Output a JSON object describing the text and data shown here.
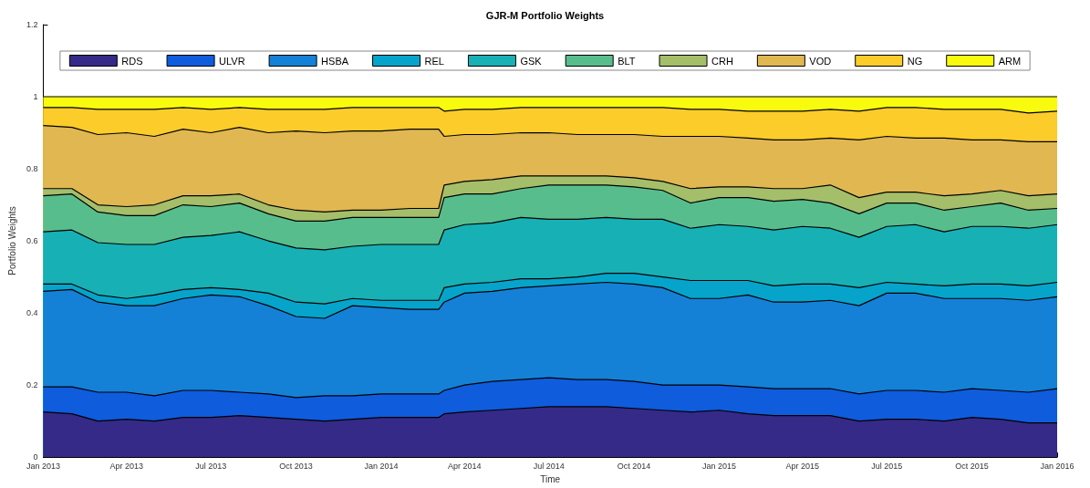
{
  "chart_data": {
    "type": "area",
    "stacked": true,
    "title": "GJR-M Portfolio Weights",
    "xlabel": "Time",
    "ylabel": "Portfolio Weights",
    "legend": "top",
    "grid": false,
    "marker": "none",
    "x": [
      "2013-01-01",
      "2013-02-01",
      "2013-03-01",
      "2013-04-01",
      "2013-05-01",
      "2013-06-01",
      "2013-07-01",
      "2013-08-01",
      "2013-09-01",
      "2013-10-01",
      "2013-11-01",
      "2013-12-01",
      "2014-01-01",
      "2014-02-01",
      "2014-03-04",
      "2014-03-10",
      "2014-04-01",
      "2014-05-01",
      "2014-06-01",
      "2014-07-01",
      "2014-08-01",
      "2014-09-01",
      "2014-10-01",
      "2014-11-01",
      "2014-12-01",
      "2015-01-01",
      "2015-02-01",
      "2015-03-01",
      "2015-04-01",
      "2015-05-01",
      "2015-06-01",
      "2015-07-01",
      "2015-08-01",
      "2015-09-01",
      "2015-10-01",
      "2015-11-01",
      "2015-12-01",
      "2016-01-01"
    ],
    "xlim": [
      "2013-01-01",
      "2016-01-01"
    ],
    "xticks": [
      {
        "value": "2013-01-01",
        "label": "Jan 2013"
      },
      {
        "value": "2013-04-01",
        "label": "Apr 2013"
      },
      {
        "value": "2013-07-01",
        "label": "Jul 2013"
      },
      {
        "value": "2013-10-01",
        "label": "Oct 2013"
      },
      {
        "value": "2014-01-01",
        "label": "Jan 2014"
      },
      {
        "value": "2014-04-01",
        "label": "Apr 2014"
      },
      {
        "value": "2014-07-01",
        "label": "Jul 2014"
      },
      {
        "value": "2014-10-01",
        "label": "Oct 2014"
      },
      {
        "value": "2015-01-01",
        "label": "Jan 2015"
      },
      {
        "value": "2015-04-01",
        "label": "Apr 2015"
      },
      {
        "value": "2015-07-01",
        "label": "Jul 2015"
      },
      {
        "value": "2015-10-01",
        "label": "Oct 2015"
      },
      {
        "value": "2016-01-01",
        "label": "Jan 2016"
      }
    ],
    "ylim": [
      0,
      1.2
    ],
    "yticks": [
      0,
      0.2,
      0.4,
      0.6,
      0.8,
      1,
      1.2
    ],
    "series": [
      {
        "name": "RDS",
        "color": "#352a87",
        "values": [
          0.125,
          0.12,
          0.1,
          0.105,
          0.1,
          0.11,
          0.11,
          0.115,
          0.11,
          0.105,
          0.1,
          0.105,
          0.11,
          0.11,
          0.11,
          0.12,
          0.125,
          0.13,
          0.135,
          0.14,
          0.14,
          0.14,
          0.135,
          0.13,
          0.125,
          0.13,
          0.12,
          0.115,
          0.115,
          0.115,
          0.1,
          0.105,
          0.105,
          0.1,
          0.11,
          0.105,
          0.095,
          0.095
        ]
      },
      {
        "name": "ULVR",
        "color": "#0f5cdd",
        "values": [
          0.07,
          0.075,
          0.08,
          0.075,
          0.07,
          0.075,
          0.075,
          0.065,
          0.065,
          0.06,
          0.07,
          0.065,
          0.065,
          0.065,
          0.065,
          0.065,
          0.075,
          0.08,
          0.08,
          0.08,
          0.075,
          0.075,
          0.075,
          0.07,
          0.075,
          0.07,
          0.075,
          0.075,
          0.075,
          0.075,
          0.075,
          0.08,
          0.08,
          0.08,
          0.08,
          0.08,
          0.085,
          0.095
        ]
      },
      {
        "name": "HSBA",
        "color": "#1481d6",
        "values": [
          0.265,
          0.27,
          0.25,
          0.24,
          0.25,
          0.255,
          0.265,
          0.265,
          0.245,
          0.225,
          0.215,
          0.25,
          0.24,
          0.235,
          0.235,
          0.245,
          0.255,
          0.25,
          0.255,
          0.255,
          0.265,
          0.27,
          0.27,
          0.27,
          0.24,
          0.24,
          0.255,
          0.24,
          0.24,
          0.245,
          0.245,
          0.27,
          0.27,
          0.26,
          0.25,
          0.255,
          0.255,
          0.255
        ]
      },
      {
        "name": "REL",
        "color": "#06a4ca",
        "values": [
          0.02,
          0.015,
          0.02,
          0.02,
          0.03,
          0.025,
          0.02,
          0.02,
          0.035,
          0.04,
          0.04,
          0.02,
          0.02,
          0.025,
          0.025,
          0.04,
          0.025,
          0.025,
          0.025,
          0.02,
          0.02,
          0.025,
          0.03,
          0.03,
          0.05,
          0.05,
          0.04,
          0.045,
          0.05,
          0.045,
          0.05,
          0.03,
          0.025,
          0.035,
          0.04,
          0.04,
          0.04,
          0.04
        ]
      },
      {
        "name": "GSK",
        "color": "#17b0b5",
        "values": [
          0.145,
          0.15,
          0.145,
          0.15,
          0.14,
          0.145,
          0.145,
          0.16,
          0.145,
          0.15,
          0.15,
          0.145,
          0.155,
          0.155,
          0.155,
          0.16,
          0.165,
          0.165,
          0.17,
          0.165,
          0.16,
          0.155,
          0.15,
          0.16,
          0.145,
          0.155,
          0.15,
          0.155,
          0.16,
          0.155,
          0.14,
          0.155,
          0.165,
          0.15,
          0.16,
          0.16,
          0.16,
          0.16
        ]
      },
      {
        "name": "BLT",
        "color": "#58bd8c",
        "values": [
          0.1,
          0.1,
          0.085,
          0.08,
          0.08,
          0.09,
          0.08,
          0.08,
          0.075,
          0.075,
          0.08,
          0.08,
          0.075,
          0.075,
          0.075,
          0.09,
          0.085,
          0.08,
          0.08,
          0.095,
          0.095,
          0.09,
          0.09,
          0.08,
          0.07,
          0.075,
          0.08,
          0.08,
          0.075,
          0.07,
          0.065,
          0.065,
          0.06,
          0.06,
          0.055,
          0.065,
          0.05,
          0.045
        ]
      },
      {
        "name": "CRH",
        "color": "#a5be6a",
        "values": [
          0.02,
          0.015,
          0.02,
          0.025,
          0.03,
          0.025,
          0.03,
          0.025,
          0.025,
          0.03,
          0.025,
          0.02,
          0.02,
          0.025,
          0.025,
          0.035,
          0.035,
          0.04,
          0.035,
          0.025,
          0.025,
          0.025,
          0.025,
          0.025,
          0.04,
          0.03,
          0.03,
          0.035,
          0.03,
          0.05,
          0.045,
          0.03,
          0.03,
          0.04,
          0.035,
          0.035,
          0.04,
          0.04
        ]
      },
      {
        "name": "VOD",
        "color": "#e1b752",
        "values": [
          0.175,
          0.17,
          0.195,
          0.205,
          0.19,
          0.185,
          0.175,
          0.185,
          0.2,
          0.22,
          0.22,
          0.22,
          0.22,
          0.22,
          0.22,
          0.135,
          0.13,
          0.125,
          0.12,
          0.12,
          0.115,
          0.115,
          0.12,
          0.125,
          0.145,
          0.14,
          0.135,
          0.135,
          0.135,
          0.13,
          0.16,
          0.155,
          0.15,
          0.16,
          0.15,
          0.14,
          0.15,
          0.145
        ]
      },
      {
        "name": "NG",
        "color": "#fbcc2a",
        "values": [
          0.05,
          0.055,
          0.07,
          0.065,
          0.075,
          0.06,
          0.065,
          0.055,
          0.065,
          0.06,
          0.065,
          0.065,
          0.065,
          0.06,
          0.06,
          0.07,
          0.07,
          0.07,
          0.07,
          0.07,
          0.075,
          0.075,
          0.075,
          0.08,
          0.075,
          0.075,
          0.075,
          0.08,
          0.08,
          0.08,
          0.08,
          0.08,
          0.085,
          0.08,
          0.085,
          0.085,
          0.08,
          0.085
        ]
      },
      {
        "name": "ARM",
        "color": "#f9fb0e",
        "values": [
          0.03,
          0.03,
          0.035,
          0.035,
          0.035,
          0.03,
          0.035,
          0.03,
          0.035,
          0.035,
          0.035,
          0.03,
          0.03,
          0.03,
          0.03,
          0.04,
          0.035,
          0.035,
          0.03,
          0.03,
          0.03,
          0.03,
          0.03,
          0.03,
          0.035,
          0.035,
          0.04,
          0.04,
          0.04,
          0.035,
          0.04,
          0.03,
          0.03,
          0.035,
          0.035,
          0.035,
          0.045,
          0.04
        ]
      }
    ]
  }
}
